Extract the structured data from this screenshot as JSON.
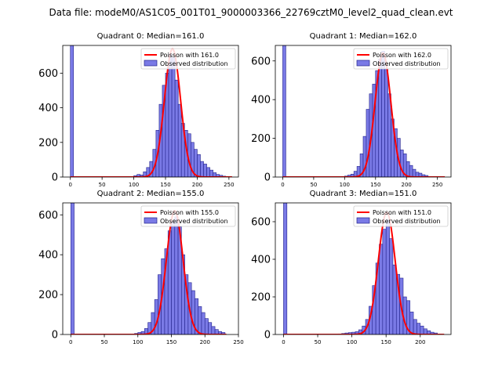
{
  "figure_title": "Data file: modeM0/AS1C05_001T01_9000003366_22769cztM0_level2_quad_clean.evt",
  "colors": {
    "bar_fill": "#7a7ae6",
    "bar_edge": "#23238c",
    "poisson_line": "#ff0000"
  },
  "legend": {
    "observed_label": "Observed distribution"
  },
  "chart_data": [
    {
      "type": "bar",
      "title": "Quadrant 0: Median=161.0",
      "median": 161.0,
      "poisson_label": "Poisson with 161.0",
      "xlim": [
        -12,
        265
      ],
      "ylim": [
        0,
        760
      ],
      "xticks": [
        0,
        50,
        100,
        150,
        200,
        250
      ],
      "yticks": [
        0,
        200,
        400,
        600
      ],
      "bins": [
        {
          "x": 0,
          "count": 760
        },
        {
          "x": 100,
          "count": 8
        },
        {
          "x": 105,
          "count": 15
        },
        {
          "x": 110,
          "count": 12
        },
        {
          "x": 115,
          "count": 30
        },
        {
          "x": 120,
          "count": 55
        },
        {
          "x": 125,
          "count": 90
        },
        {
          "x": 130,
          "count": 160
        },
        {
          "x": 135,
          "count": 270
        },
        {
          "x": 140,
          "count": 420
        },
        {
          "x": 145,
          "count": 530
        },
        {
          "x": 150,
          "count": 600
        },
        {
          "x": 155,
          "count": 710
        },
        {
          "x": 160,
          "count": 690
        },
        {
          "x": 165,
          "count": 560
        },
        {
          "x": 170,
          "count": 420
        },
        {
          "x": 175,
          "count": 310
        },
        {
          "x": 180,
          "count": 270
        },
        {
          "x": 185,
          "count": 250
        },
        {
          "x": 190,
          "count": 200
        },
        {
          "x": 195,
          "count": 160
        },
        {
          "x": 200,
          "count": 130
        },
        {
          "x": 205,
          "count": 90
        },
        {
          "x": 210,
          "count": 75
        },
        {
          "x": 215,
          "count": 55
        },
        {
          "x": 220,
          "count": 40
        },
        {
          "x": 225,
          "count": 25
        },
        {
          "x": 230,
          "count": 15
        },
        {
          "x": 235,
          "count": 10
        },
        {
          "x": 240,
          "count": 5
        }
      ],
      "poisson": {
        "mean": 161.0,
        "peak": 740,
        "x_start": 0,
        "x_end": 255
      }
    },
    {
      "type": "bar",
      "title": "Quadrant 1: Median=162.0",
      "median": 162.0,
      "poisson_label": "Poisson with 162.0",
      "xlim": [
        -12,
        272
      ],
      "ylim": [
        0,
        680
      ],
      "xticks": [
        0,
        50,
        100,
        150,
        200,
        250
      ],
      "yticks": [
        0,
        200,
        400,
        600
      ],
      "bins": [
        {
          "x": 0,
          "count": 680
        },
        {
          "x": 100,
          "count": 5
        },
        {
          "x": 105,
          "count": 10
        },
        {
          "x": 110,
          "count": 15
        },
        {
          "x": 115,
          "count": 30
        },
        {
          "x": 120,
          "count": 55
        },
        {
          "x": 125,
          "count": 120
        },
        {
          "x": 130,
          "count": 210
        },
        {
          "x": 135,
          "count": 350
        },
        {
          "x": 140,
          "count": 430
        },
        {
          "x": 145,
          "count": 480
        },
        {
          "x": 150,
          "count": 550
        },
        {
          "x": 155,
          "count": 610
        },
        {
          "x": 160,
          "count": 650
        },
        {
          "x": 165,
          "count": 560
        },
        {
          "x": 170,
          "count": 430
        },
        {
          "x": 175,
          "count": 300
        },
        {
          "x": 180,
          "count": 250
        },
        {
          "x": 185,
          "count": 200
        },
        {
          "x": 190,
          "count": 140
        },
        {
          "x": 195,
          "count": 120
        },
        {
          "x": 200,
          "count": 80
        },
        {
          "x": 205,
          "count": 60
        },
        {
          "x": 210,
          "count": 40
        },
        {
          "x": 215,
          "count": 25
        },
        {
          "x": 220,
          "count": 20
        },
        {
          "x": 225,
          "count": 12
        },
        {
          "x": 230,
          "count": 8
        }
      ],
      "poisson": {
        "mean": 162.0,
        "peak": 640,
        "x_start": 0,
        "x_end": 262
      }
    },
    {
      "type": "bar",
      "title": "Quadrant 2: Median=155.0",
      "median": 155.0,
      "poisson_label": "Poisson with 155.0",
      "xlim": [
        -12,
        250
      ],
      "ylim": [
        0,
        660
      ],
      "xticks": [
        0,
        50,
        100,
        150,
        200,
        250
      ],
      "yticks": [
        0,
        200,
        400,
        600
      ],
      "bins": [
        {
          "x": 0,
          "count": 660
        },
        {
          "x": 95,
          "count": 5
        },
        {
          "x": 100,
          "count": 10
        },
        {
          "x": 105,
          "count": 15
        },
        {
          "x": 110,
          "count": 30
        },
        {
          "x": 115,
          "count": 60
        },
        {
          "x": 120,
          "count": 110
        },
        {
          "x": 125,
          "count": 175
        },
        {
          "x": 130,
          "count": 300
        },
        {
          "x": 135,
          "count": 380
        },
        {
          "x": 140,
          "count": 430
        },
        {
          "x": 145,
          "count": 520
        },
        {
          "x": 150,
          "count": 570
        },
        {
          "x": 155,
          "count": 590
        },
        {
          "x": 160,
          "count": 540
        },
        {
          "x": 165,
          "count": 400
        },
        {
          "x": 170,
          "count": 300
        },
        {
          "x": 175,
          "count": 260
        },
        {
          "x": 180,
          "count": 220
        },
        {
          "x": 185,
          "count": 180
        },
        {
          "x": 190,
          "count": 140
        },
        {
          "x": 195,
          "count": 110
        },
        {
          "x": 200,
          "count": 80
        },
        {
          "x": 205,
          "count": 60
        },
        {
          "x": 210,
          "count": 40
        },
        {
          "x": 215,
          "count": 25
        },
        {
          "x": 220,
          "count": 15
        },
        {
          "x": 225,
          "count": 10
        }
      ],
      "poisson": {
        "mean": 155.0,
        "peak": 620,
        "x_start": 0,
        "x_end": 232
      }
    },
    {
      "type": "bar",
      "title": "Quadrant 3: Median=151.0",
      "median": 151.0,
      "poisson_label": "Poisson with 151.0",
      "xlim": [
        -12,
        245
      ],
      "ylim": [
        0,
        700
      ],
      "xticks": [
        0,
        50,
        100,
        150,
        200
      ],
      "yticks": [
        0,
        200,
        400,
        600
      ],
      "bins": [
        {
          "x": 0,
          "count": 700
        },
        {
          "x": 80,
          "count": 3
        },
        {
          "x": 85,
          "count": 5
        },
        {
          "x": 90,
          "count": 8
        },
        {
          "x": 95,
          "count": 10
        },
        {
          "x": 100,
          "count": 12
        },
        {
          "x": 105,
          "count": 15
        },
        {
          "x": 110,
          "count": 25
        },
        {
          "x": 115,
          "count": 45
        },
        {
          "x": 120,
          "count": 80
        },
        {
          "x": 125,
          "count": 150
        },
        {
          "x": 130,
          "count": 260
        },
        {
          "x": 135,
          "count": 380
        },
        {
          "x": 140,
          "count": 480
        },
        {
          "x": 145,
          "count": 560
        },
        {
          "x": 150,
          "count": 610
        },
        {
          "x": 155,
          "count": 510
        },
        {
          "x": 160,
          "count": 370
        },
        {
          "x": 165,
          "count": 320
        },
        {
          "x": 170,
          "count": 300
        },
        {
          "x": 175,
          "count": 200
        },
        {
          "x": 180,
          "count": 180
        },
        {
          "x": 185,
          "count": 120
        },
        {
          "x": 190,
          "count": 80
        },
        {
          "x": 195,
          "count": 60
        },
        {
          "x": 200,
          "count": 45
        },
        {
          "x": 205,
          "count": 30
        },
        {
          "x": 210,
          "count": 20
        },
        {
          "x": 215,
          "count": 12
        },
        {
          "x": 220,
          "count": 8
        }
      ],
      "poisson": {
        "mean": 151.0,
        "peak": 650,
        "x_start": 0,
        "x_end": 235
      }
    }
  ]
}
